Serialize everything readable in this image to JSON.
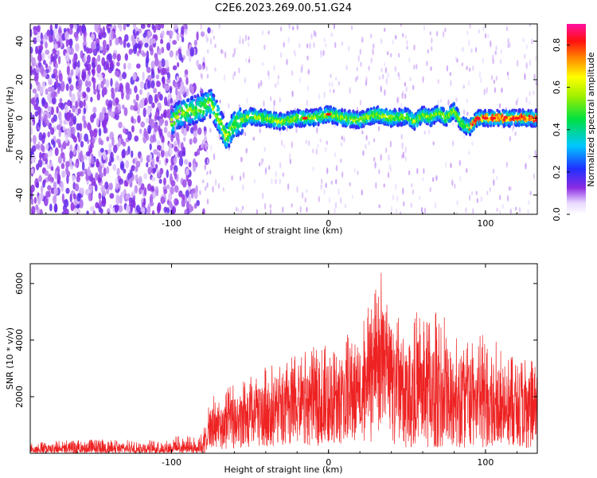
{
  "figure": {
    "title": "C2E6.2023.269.00.51.G24"
  },
  "colors": {
    "snr_line": "#ee2222",
    "frame": "#000000",
    "background": "#ffffff"
  },
  "chart_data": [
    {
      "type": "heatmap",
      "title": "",
      "xlabel": "Height of straight line (km)",
      "ylabel": "Frequency (Hz)",
      "xlim": [
        -190,
        133
      ],
      "ylim": [
        -50,
        49
      ],
      "xticks": [
        -100,
        0,
        100
      ],
      "xtick_labels": [
        "-100",
        "0",
        "100"
      ],
      "yticks": [
        -40,
        -20,
        0,
        20,
        40
      ],
      "ytick_labels": [
        "-40",
        "-20",
        "0",
        "20",
        "40"
      ],
      "colorbar": {
        "label": "Normalized spectral amplitude",
        "range": [
          0.0,
          0.9
        ],
        "ticks": [
          0.0,
          0.2,
          0.4,
          0.6,
          0.8
        ],
        "tick_labels": [
          "0.0",
          "0.2",
          "0.4",
          "0.6",
          "0.8"
        ],
        "colormap": "rainbow (white-purple-blue-cyan-green-yellow-red-magenta)"
      },
      "features": {
        "noise_region_x": [
          -190,
          -82
        ],
        "signal_trace_frequency_hz": [
          [
            -100,
            -2
          ],
          [
            -95,
            2
          ],
          [
            -82,
            5
          ],
          [
            -75,
            8
          ],
          [
            -70,
            0
          ],
          [
            -65,
            -10
          ],
          [
            -60,
            -3
          ],
          [
            -50,
            1
          ],
          [
            -40,
            0
          ],
          [
            -30,
            -2
          ],
          [
            -20,
            0
          ],
          [
            -10,
            0
          ],
          [
            0,
            2
          ],
          [
            10,
            0
          ],
          [
            20,
            -1
          ],
          [
            30,
            2
          ],
          [
            40,
            0
          ],
          [
            50,
            1
          ],
          [
            55,
            -2
          ],
          [
            60,
            2
          ],
          [
            65,
            0
          ],
          [
            70,
            3
          ],
          [
            75,
            0
          ],
          [
            80,
            4
          ],
          [
            85,
            -3
          ],
          [
            90,
            -5
          ],
          [
            95,
            0
          ],
          [
            100,
            0
          ],
          [
            110,
            0
          ],
          [
            120,
            0
          ],
          [
            133,
            0
          ]
        ]
      }
    },
    {
      "type": "line",
      "title": "",
      "xlabel": "Height of straight line (km)",
      "ylabel": "SNR (10 * v/v)",
      "xlim": [
        -190,
        133
      ],
      "ylim": [
        0,
        6700
      ],
      "xticks": [
        -100,
        0,
        100
      ],
      "xtick_labels": [
        "-100",
        "0",
        "100"
      ],
      "yticks": [
        2000,
        4000,
        6000
      ],
      "ytick_labels": [
        "2000",
        "4000",
        "6000"
      ],
      "series": [
        {
          "envelope_x": [
            -190,
            -150,
            -110,
            -92,
            -85,
            -80,
            -75,
            -65,
            -55,
            -45,
            -35,
            -25,
            -15,
            -5,
            5,
            15,
            22,
            27,
            30,
            33,
            36,
            40,
            50,
            55,
            60,
            70,
            80,
            90,
            100,
            110,
            120,
            133
          ],
          "envelope_ymin": [
            0,
            0,
            0,
            0,
            0,
            0,
            100,
            150,
            150,
            200,
            200,
            250,
            250,
            250,
            300,
            300,
            350,
            400,
            500,
            600,
            500,
            300,
            200,
            200,
            200,
            200,
            200,
            200,
            200,
            200,
            200,
            200
          ],
          "envelope_ymax": [
            400,
            500,
            450,
            650,
            550,
            800,
            2000,
            2300,
            2600,
            2900,
            3300,
            3400,
            3700,
            3800,
            4000,
            4300,
            4800,
            5500,
            6700,
            6500,
            6000,
            5500,
            4700,
            5200,
            5000,
            5000,
            4800,
            4400,
            4300,
            4000,
            3500,
            3200
          ],
          "envelope_ymean": [
            150,
            160,
            160,
            180,
            200,
            300,
            900,
            1100,
            1200,
            1400,
            1600,
            1700,
            1900,
            1900,
            2000,
            2200,
            2400,
            2800,
            3500,
            3400,
            3000,
            2600,
            2200,
            2100,
            2100,
            2000,
            2000,
            1900,
            1900,
            1900,
            1800,
            1700
          ]
        }
      ]
    }
  ]
}
